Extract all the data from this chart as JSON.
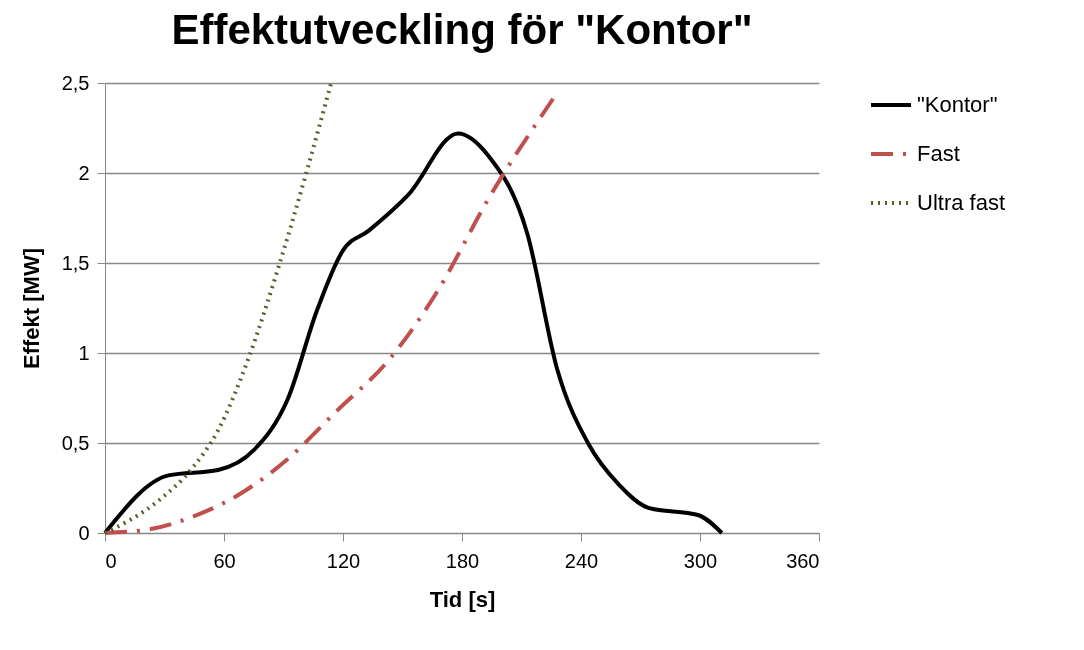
{
  "chart_data": {
    "type": "line",
    "title": "Effektutveckling för \"Kontor\"",
    "xlabel": "Tid [s]",
    "ylabel": "Effekt [MW]",
    "xlim": [
      0,
      360
    ],
    "xticks": [
      0,
      60,
      120,
      180,
      240,
      300,
      360
    ],
    "ylim": [
      0,
      2.5
    ],
    "yticks": [
      0,
      {
        "value": 0.5,
        "label": "0,5"
      },
      1,
      {
        "value": 1.5,
        "label": "1,5"
      },
      2,
      {
        "value": 2.5,
        "label": "2,5"
      }
    ],
    "grid": "y",
    "legend": "right",
    "series": [
      {
        "name": "\"Kontor\"",
        "color": "#000000",
        "line_style": "solid",
        "x": [
          0,
          32,
          57,
          75,
          92,
          107,
          120,
          133,
          153,
          178,
          193,
          213,
          228,
          244,
          259,
          274,
          299,
          311
        ],
        "values": [
          0,
          0.32,
          0.35,
          0.46,
          0.74,
          1.24,
          1.57,
          1.68,
          1.88,
          2.22,
          2.1,
          1.66,
          0.91,
          0.49,
          0.27,
          0.14,
          0.1,
          0
        ]
      },
      {
        "name": "Fast",
        "color": "#c0504d",
        "line_style": "dashed",
        "x": [
          0,
          22,
          44,
          67,
          92,
          117,
          143,
          168,
          193,
          227
        ],
        "values": [
          0,
          0.02,
          0.09,
          0.21,
          0.41,
          0.68,
          0.96,
          1.35,
          1.85,
          2.43
        ]
      },
      {
        "name": "Ultra fast",
        "color": "#4f6228",
        "line_style": "dotted",
        "x": [
          0,
          27,
          44,
          57,
          72,
          87,
          102,
          114
        ],
        "values": [
          0,
          0.18,
          0.36,
          0.57,
          0.96,
          1.46,
          2.02,
          2.5
        ]
      }
    ]
  }
}
